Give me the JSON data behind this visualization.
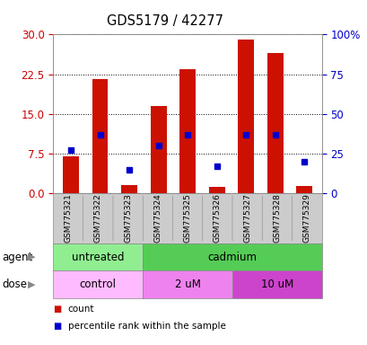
{
  "title": "GDS5179 / 42277",
  "samples": [
    "GSM775321",
    "GSM775322",
    "GSM775323",
    "GSM775324",
    "GSM775325",
    "GSM775326",
    "GSM775327",
    "GSM775328",
    "GSM775329"
  ],
  "red_counts": [
    7.0,
    21.5,
    1.5,
    16.5,
    23.5,
    1.2,
    29.0,
    26.5,
    1.3
  ],
  "blue_percentiles": [
    27,
    37,
    15,
    30,
    37,
    17,
    37,
    37,
    20
  ],
  "ylim_left": [
    0,
    30
  ],
  "ylim_right": [
    0,
    100
  ],
  "yticks_left": [
    0,
    7.5,
    15,
    22.5,
    30
  ],
  "yticks_right": [
    0,
    25,
    50,
    75,
    100
  ],
  "ytick_labels_right": [
    "0",
    "25",
    "50",
    "75",
    "100%"
  ],
  "agent_groups": [
    {
      "label": "untreated",
      "span": [
        0,
        3
      ],
      "color": "#90EE90"
    },
    {
      "label": "cadmium",
      "span": [
        3,
        9
      ],
      "color": "#55CC55"
    }
  ],
  "dose_groups": [
    {
      "label": "control",
      "span": [
        0,
        3
      ],
      "color": "#FFBBFF"
    },
    {
      "label": "2 uM",
      "span": [
        3,
        6
      ],
      "color": "#EE82EE"
    },
    {
      "label": "10 uM",
      "span": [
        6,
        9
      ],
      "color": "#CC44CC"
    }
  ],
  "bar_color": "#CC1100",
  "dot_color": "#0000CC",
  "bar_width": 0.55,
  "tick_color_left": "#CC0000",
  "tick_color_right": "#0000CC",
  "sample_bg": "#CCCCCC",
  "plot_bg": "white",
  "legend_labels": [
    "count",
    "percentile rank within the sample"
  ]
}
